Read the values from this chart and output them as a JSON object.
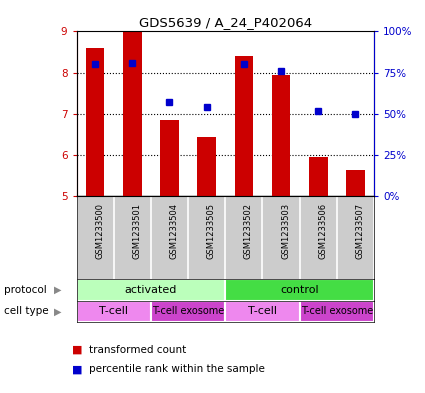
{
  "title": "GDS5639 / A_24_P402064",
  "samples": [
    "GSM1233500",
    "GSM1233501",
    "GSM1233504",
    "GSM1233505",
    "GSM1233502",
    "GSM1233503",
    "GSM1233506",
    "GSM1233507"
  ],
  "transformed_counts": [
    8.6,
    9.0,
    6.85,
    6.45,
    8.4,
    7.95,
    5.95,
    5.65
  ],
  "percentile_ranks": [
    80,
    81,
    57,
    54,
    80,
    76,
    52,
    50
  ],
  "ylim_left": [
    5,
    9
  ],
  "ylim_right": [
    0,
    100
  ],
  "yticks_left": [
    5,
    6,
    7,
    8,
    9
  ],
  "yticks_right": [
    0,
    25,
    50,
    75,
    100
  ],
  "yticklabels_right": [
    "0%",
    "25%",
    "50%",
    "75%",
    "100%"
  ],
  "bar_color": "#cc0000",
  "dot_color": "#0000cc",
  "bar_bottom": 5,
  "protocol_groups": [
    {
      "label": "activated",
      "start": 0,
      "end": 4,
      "color": "#bbffbb"
    },
    {
      "label": "control",
      "start": 4,
      "end": 8,
      "color": "#44dd44"
    }
  ],
  "cell_type_groups": [
    {
      "label": "T-cell",
      "start": 0,
      "end": 2,
      "color": "#ee88ee"
    },
    {
      "label": "T-cell exosome",
      "start": 2,
      "end": 4,
      "color": "#cc44cc"
    },
    {
      "label": "T-cell",
      "start": 4,
      "end": 6,
      "color": "#ee88ee"
    },
    {
      "label": "T-cell exosome",
      "start": 6,
      "end": 8,
      "color": "#cc44cc"
    }
  ],
  "legend_bar_label": "transformed count",
  "legend_dot_label": "percentile rank within the sample",
  "protocol_label": "protocol",
  "cell_type_label": "cell type",
  "sample_bg_color": "#cccccc",
  "dotted_yticks": [
    6,
    7,
    8
  ]
}
